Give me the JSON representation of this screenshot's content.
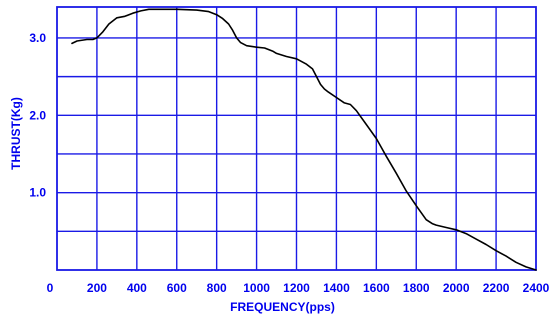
{
  "chart_data": {
    "type": "line",
    "title": "",
    "xlabel": "FREQUENCY(pps)",
    "ylabel": "THRUST(Kg)",
    "xlim": [
      0,
      2400
    ],
    "ylim": [
      0,
      3.4
    ],
    "x_ticks": [
      0,
      200,
      400,
      600,
      800,
      1000,
      1200,
      1400,
      1600,
      1800,
      2000,
      2200,
      2400
    ],
    "x_tick_labels": [
      "0",
      "200",
      "400",
      "600",
      "800",
      "1000",
      "1200",
      "1400",
      "1600",
      "1800",
      "2000",
      "2200",
      "2400"
    ],
    "y_grid": [
      0.5,
      1.0,
      1.5,
      2.0,
      2.5,
      3.0
    ],
    "y_ticks": [
      1.0,
      2.0,
      3.0
    ],
    "y_tick_labels": [
      "1.0",
      "2.0",
      "3.0"
    ],
    "grid": true,
    "legend": "none",
    "colors": {
      "grid": "#1a1ae6",
      "labels": "#0000ee",
      "curve": "#000000"
    },
    "series": [
      {
        "x": [
          75,
          100,
          150,
          180,
          200,
          230,
          260,
          300,
          340,
          380,
          420,
          460,
          500,
          600,
          700,
          760,
          800,
          830,
          860,
          880,
          900,
          920,
          950,
          1000,
          1040,
          1080,
          1100,
          1150,
          1200,
          1250,
          1280,
          1300,
          1320,
          1340,
          1360,
          1400,
          1440,
          1470,
          1500,
          1550,
          1600,
          1650,
          1700,
          1750,
          1800,
          1850,
          1880,
          1900,
          1950,
          2000,
          2050,
          2100,
          2150,
          2200,
          2250,
          2300,
          2350,
          2400
        ],
        "y": [
          2.93,
          2.96,
          2.98,
          2.98,
          3.0,
          3.08,
          3.18,
          3.26,
          3.28,
          3.32,
          3.35,
          3.37,
          3.37,
          3.37,
          3.36,
          3.34,
          3.3,
          3.25,
          3.18,
          3.1,
          3.0,
          2.94,
          2.9,
          2.88,
          2.87,
          2.83,
          2.8,
          2.76,
          2.73,
          2.66,
          2.6,
          2.5,
          2.4,
          2.34,
          2.3,
          2.23,
          2.16,
          2.14,
          2.06,
          1.88,
          1.7,
          1.47,
          1.25,
          1.02,
          0.83,
          0.65,
          0.6,
          0.58,
          0.55,
          0.52,
          0.47,
          0.4,
          0.33,
          0.25,
          0.18,
          0.1,
          0.04,
          0.0
        ]
      }
    ]
  }
}
